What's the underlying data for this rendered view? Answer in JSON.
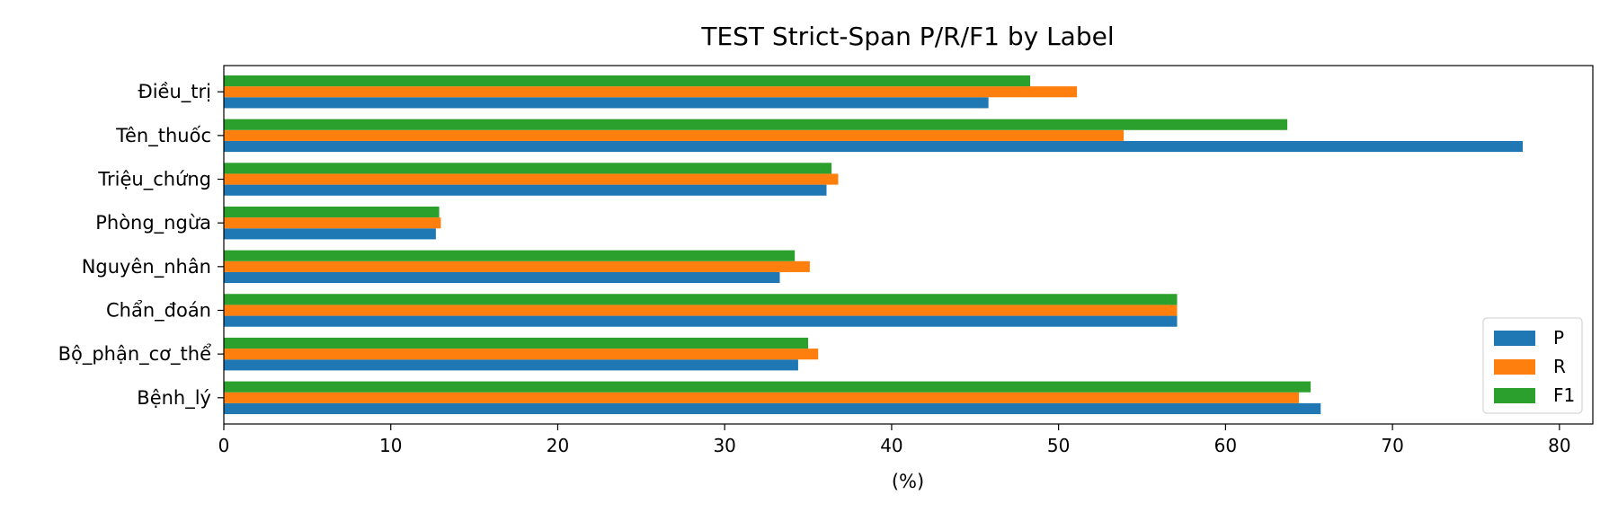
{
  "chart_data": {
    "type": "bar",
    "orientation": "horizontal",
    "title": "TEST Strict-Span P/R/F1 by Label",
    "xlabel": "(%)",
    "ylabel": "",
    "xlim": [
      0,
      82
    ],
    "xticks": [
      0,
      10,
      20,
      30,
      40,
      50,
      60,
      70,
      80
    ],
    "grid": false,
    "legend_position": "lower-right",
    "categories": [
      "Bệnh_lý",
      "Bộ_phận_cơ_thể",
      "Chẩn_đoán",
      "Nguyên_nhân",
      "Phòng_ngừa",
      "Triệu_chứng",
      "Tên_thuốc",
      "Điều_trị"
    ],
    "series": [
      {
        "name": "P",
        "color": "#1f77b4",
        "values": [
          65.7,
          34.4,
          57.1,
          33.3,
          12.7,
          36.1,
          77.8,
          45.8
        ]
      },
      {
        "name": "R",
        "color": "#ff7f0e",
        "values": [
          64.4,
          35.6,
          57.1,
          35.1,
          13.0,
          36.8,
          53.9,
          51.1
        ]
      },
      {
        "name": "F1",
        "color": "#2ca02c",
        "values": [
          65.1,
          35.0,
          57.1,
          34.2,
          12.9,
          36.4,
          63.7,
          48.3
        ]
      }
    ]
  }
}
